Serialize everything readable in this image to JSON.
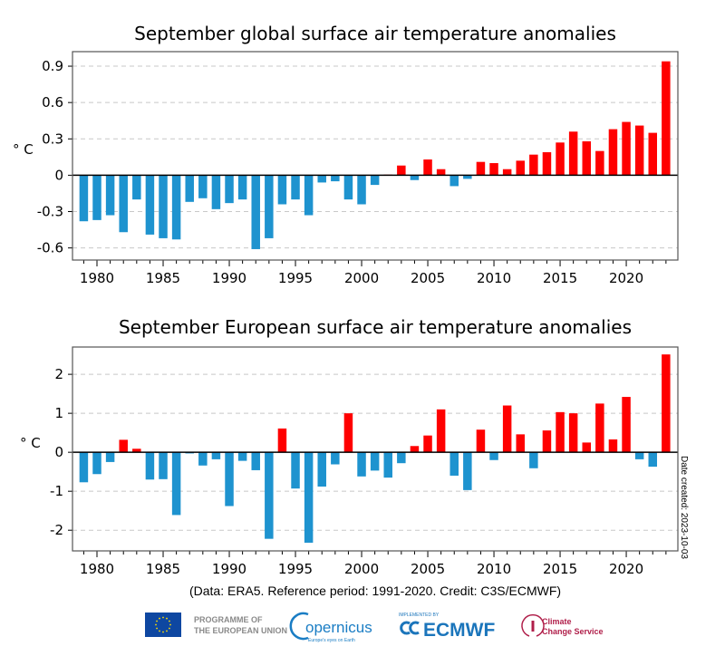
{
  "chart_data": [
    {
      "type": "bar",
      "title": "September global surface air temperature anomalies",
      "ylabel": "° C",
      "xlim": [
        1978.15,
        2023.9
      ],
      "ylim": [
        -0.7,
        1.02
      ],
      "yticks": [
        -0.6,
        -0.3,
        0,
        0.3,
        0.6,
        0.9
      ],
      "ytick_labels": [
        "-0.6",
        "-0.3",
        "0",
        "0.3",
        "0.6",
        "0.9"
      ],
      "xticks": [
        1980,
        1985,
        1990,
        1995,
        2000,
        2005,
        2010,
        2015,
        2020
      ],
      "xtick_labels": [
        "1980",
        "1985",
        "1990",
        "1995",
        "2000",
        "2005",
        "2010",
        "2015",
        "2020"
      ],
      "grid": "horizontal dashed",
      "positive_color": "#ff0000",
      "negative_color": "#1e93cf",
      "x": [
        1979,
        1980,
        1981,
        1982,
        1983,
        1984,
        1985,
        1986,
        1987,
        1988,
        1989,
        1990,
        1991,
        1992,
        1993,
        1994,
        1995,
        1996,
        1997,
        1998,
        1999,
        2000,
        2001,
        2002,
        2003,
        2004,
        2005,
        2006,
        2007,
        2008,
        2009,
        2010,
        2011,
        2012,
        2013,
        2014,
        2015,
        2016,
        2017,
        2018,
        2019,
        2020,
        2021,
        2022,
        2023
      ],
      "values": [
        -0.38,
        -0.37,
        -0.33,
        -0.47,
        -0.2,
        -0.49,
        -0.52,
        -0.53,
        -0.22,
        -0.19,
        -0.28,
        -0.23,
        -0.2,
        -0.61,
        -0.52,
        -0.24,
        -0.2,
        -0.33,
        -0.06,
        -0.05,
        -0.2,
        -0.24,
        -0.08,
        0.005,
        0.08,
        -0.04,
        0.13,
        0.05,
        -0.09,
        -0.03,
        0.11,
        0.1,
        0.05,
        0.12,
        0.17,
        0.19,
        0.27,
        0.36,
        0.28,
        0.2,
        0.38,
        0.44,
        0.41,
        0.35,
        0.94
      ]
    },
    {
      "type": "bar",
      "title": "September European surface air temperature anomalies",
      "ylabel": "° C",
      "xlim": [
        1978.15,
        2023.9
      ],
      "ylim": [
        -2.53,
        2.7
      ],
      "yticks": [
        -2,
        -1,
        0,
        1,
        2
      ],
      "ytick_labels": [
        "-2",
        "-1",
        "0",
        "1",
        "2"
      ],
      "xticks": [
        1980,
        1985,
        1990,
        1995,
        2000,
        2005,
        2010,
        2015,
        2020
      ],
      "xtick_labels": [
        "1980",
        "1985",
        "1990",
        "1995",
        "2000",
        "2005",
        "2010",
        "2015",
        "2020"
      ],
      "grid": "horizontal dashed",
      "positive_color": "#ff0000",
      "negative_color": "#1e93cf",
      "x": [
        1979,
        1980,
        1981,
        1982,
        1983,
        1984,
        1985,
        1986,
        1987,
        1988,
        1989,
        1990,
        1991,
        1992,
        1993,
        1994,
        1995,
        1996,
        1997,
        1998,
        1999,
        2000,
        2001,
        2002,
        2003,
        2004,
        2005,
        2006,
        2007,
        2008,
        2009,
        2010,
        2011,
        2012,
        2013,
        2014,
        2015,
        2016,
        2017,
        2018,
        2019,
        2020,
        2021,
        2022,
        2023
      ],
      "values": [
        -0.77,
        -0.56,
        -0.25,
        0.32,
        0.09,
        -0.7,
        -0.69,
        -1.61,
        -0.03,
        -0.34,
        -0.18,
        -1.38,
        -0.22,
        -0.46,
        -2.22,
        0.61,
        -0.93,
        -2.32,
        -0.88,
        -0.31,
        1.0,
        -0.62,
        -0.47,
        -0.65,
        -0.28,
        0.16,
        0.43,
        1.1,
        -0.6,
        -0.97,
        0.58,
        -0.2,
        1.2,
        0.46,
        -0.41,
        0.56,
        1.03,
        1.0,
        0.25,
        1.25,
        0.33,
        1.42,
        -0.18,
        -0.37,
        2.51
      ]
    }
  ],
  "date_created": "Date created: 2023-10-03",
  "credit": "(Data: ERA5.  Reference period: 1991-2020.  Credit: C3S/ECMWF)",
  "logos": {
    "eu": {
      "line1": "PROGRAMME OF",
      "line2": "THE EUROPEAN UNION",
      "color": "#0e47a1"
    },
    "copernicus": {
      "name": "opernicus",
      "tagline": "Europe's eyes on Earth",
      "color": "#1a7dc4"
    },
    "ecmwf": {
      "implemented": "IMPLEMENTED BY",
      "name": "ECMWF",
      "color": "#1b75bb"
    },
    "c3s": {
      "line1": "Climate",
      "line2": "Change Service",
      "color": "#b01f4a"
    }
  }
}
